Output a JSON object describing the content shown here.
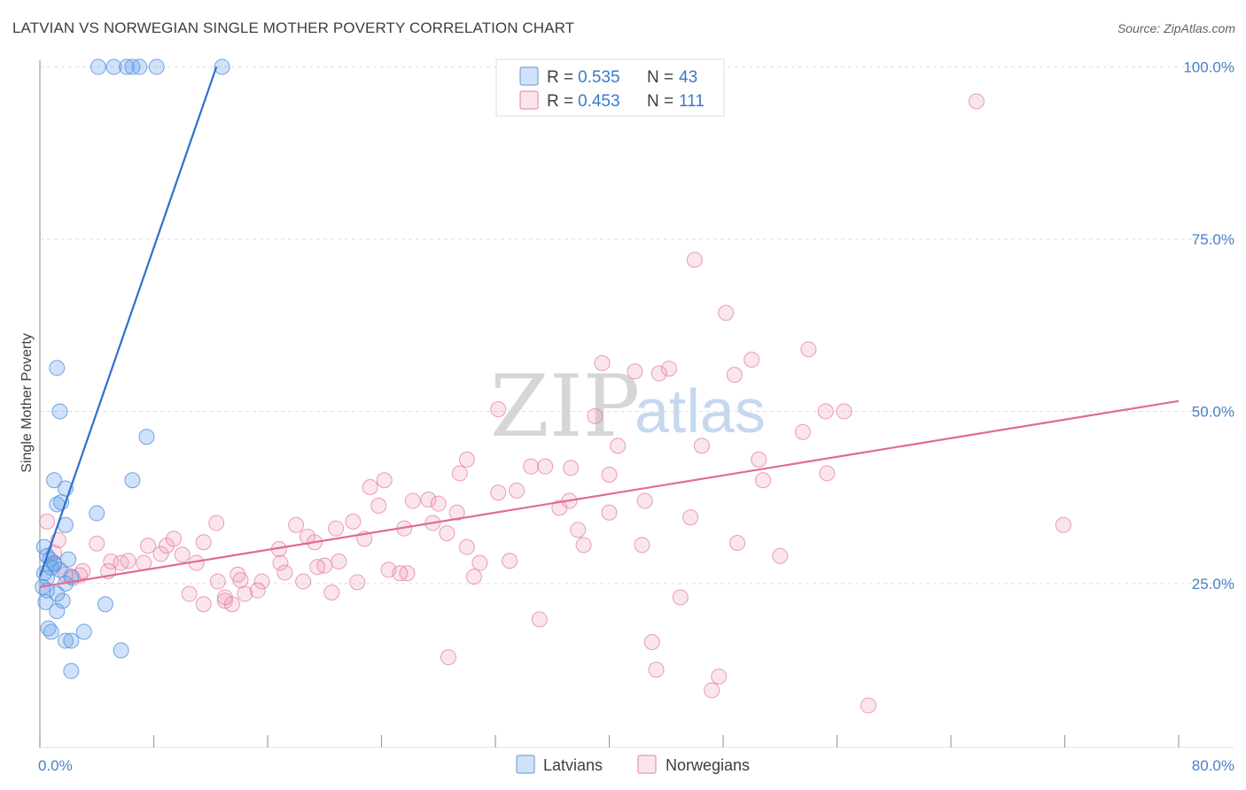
{
  "title": "LATVIAN VS NORWEGIAN SINGLE MOTHER POVERTY CORRELATION CHART",
  "source": "Source: ZipAtlas.com",
  "watermark": {
    "zip": "ZIP",
    "atlas": "atlas"
  },
  "colors": {
    "latvian_fill": "rgba(100,160,235,0.30)",
    "latvian_stroke": "#5b95dc",
    "latvian_line": "#2e6fd0",
    "norwegian_fill": "rgba(240,150,180,0.25)",
    "norwegian_stroke": "#e07fa2",
    "norwegian_line": "#e06b97",
    "grid": "#dedede",
    "axis_text": "#4a7fc9"
  },
  "legend": {
    "r_label": "R =",
    "n_label": "N =",
    "entries": [
      {
        "series": "Latvians",
        "r": "0.535",
        "n": "43"
      },
      {
        "series": "Norwegians",
        "r": "0.453",
        "n": "111"
      }
    ]
  },
  "chart_data": {
    "type": "scatter",
    "title": "LATVIAN VS NORWEGIAN SINGLE MOTHER POVERTY CORRELATION CHART",
    "xlabel": "",
    "ylabel": "Single Mother Poverty",
    "xlim": [
      0,
      80
    ],
    "ylim": [
      3,
      102
    ],
    "x_tick_labels": [
      "0.0%",
      "80.0%"
    ],
    "y_ticks": [
      25,
      50,
      75,
      100
    ],
    "y_tick_labels": [
      "25.0%",
      "50.0%",
      "75.0%",
      "100.0%"
    ],
    "grid": true,
    "legend_position": "top-center",
    "series": [
      {
        "name": "Latvians",
        "trend": {
          "x": [
            0,
            12.4
          ],
          "y": [
            26,
            100
          ]
        },
        "points": [
          [
            4.1,
            100
          ],
          [
            5.2,
            100
          ],
          [
            6.1,
            100
          ],
          [
            7.0,
            100
          ],
          [
            8.2,
            100
          ],
          [
            6.5,
            100
          ],
          [
            12.8,
            100
          ],
          [
            1.2,
            56.3
          ],
          [
            1.4,
            50.0
          ],
          [
            7.5,
            46.3
          ],
          [
            6.5,
            40.0
          ],
          [
            1.0,
            40.0
          ],
          [
            1.8,
            38.8
          ],
          [
            1.5,
            36.8
          ],
          [
            1.2,
            36.5
          ],
          [
            4.0,
            35.2
          ],
          [
            1.8,
            33.5
          ],
          [
            0.3,
            30.3
          ],
          [
            0.5,
            29.0
          ],
          [
            0.7,
            28.5
          ],
          [
            2.0,
            28.5
          ],
          [
            1.0,
            27.8
          ],
          [
            0.8,
            27.3
          ],
          [
            1.4,
            27.0
          ],
          [
            2.2,
            26.0
          ],
          [
            0.5,
            25.8
          ],
          [
            1.8,
            25.0
          ],
          [
            0.2,
            24.5
          ],
          [
            0.5,
            24.0
          ],
          [
            1.2,
            23.5
          ],
          [
            1.6,
            22.5
          ],
          [
            0.4,
            22.3
          ],
          [
            4.6,
            22.0
          ],
          [
            1.2,
            21.0
          ],
          [
            0.6,
            18.5
          ],
          [
            0.8,
            18.0
          ],
          [
            3.1,
            18.0
          ],
          [
            1.8,
            16.7
          ],
          [
            2.2,
            16.7
          ],
          [
            5.7,
            15.3
          ],
          [
            2.2,
            12.3
          ],
          [
            1.0,
            28.0
          ],
          [
            0.3,
            26.5
          ]
        ]
      },
      {
        "name": "Norwegians",
        "trend": {
          "x": [
            0,
            80
          ],
          "y": [
            24.5,
            51.5
          ]
        },
        "points": [
          [
            65.8,
            95.0
          ],
          [
            46.0,
            72.0
          ],
          [
            48.2,
            64.3
          ],
          [
            54.0,
            59.0
          ],
          [
            50.0,
            57.5
          ],
          [
            39.5,
            57.0
          ],
          [
            44.2,
            56.2
          ],
          [
            41.8,
            55.8
          ],
          [
            43.5,
            55.5
          ],
          [
            48.8,
            55.3
          ],
          [
            32.2,
            50.3
          ],
          [
            39.0,
            49.3
          ],
          [
            55.2,
            50.0
          ],
          [
            56.5,
            50.0
          ],
          [
            53.6,
            47.0
          ],
          [
            40.6,
            45.0
          ],
          [
            46.5,
            45.0
          ],
          [
            30.0,
            43.0
          ],
          [
            50.5,
            43.0
          ],
          [
            34.5,
            42.0
          ],
          [
            35.5,
            42.0
          ],
          [
            37.3,
            41.8
          ],
          [
            29.5,
            41.0
          ],
          [
            40.0,
            40.8
          ],
          [
            55.3,
            41.0
          ],
          [
            50.8,
            40.0
          ],
          [
            24.2,
            40.0
          ],
          [
            23.2,
            39.0
          ],
          [
            33.5,
            38.5
          ],
          [
            32.2,
            38.2
          ],
          [
            37.2,
            37.0
          ],
          [
            42.5,
            37.0
          ],
          [
            26.2,
            37.0
          ],
          [
            27.3,
            37.2
          ],
          [
            28.0,
            36.6
          ],
          [
            23.8,
            36.3
          ],
          [
            36.5,
            36.0
          ],
          [
            29.3,
            35.3
          ],
          [
            40.0,
            35.3
          ],
          [
            45.7,
            34.6
          ],
          [
            27.6,
            33.8
          ],
          [
            22.0,
            34.0
          ],
          [
            71.9,
            33.5
          ],
          [
            20.8,
            33.0
          ],
          [
            25.6,
            33.0
          ],
          [
            18.0,
            33.5
          ],
          [
            37.8,
            32.8
          ],
          [
            28.6,
            32.3
          ],
          [
            18.8,
            31.8
          ],
          [
            22.8,
            31.5
          ],
          [
            9.4,
            31.5
          ],
          [
            7.6,
            30.5
          ],
          [
            8.9,
            30.5
          ],
          [
            11.5,
            31.0
          ],
          [
            19.3,
            31.0
          ],
          [
            38.2,
            30.6
          ],
          [
            42.3,
            30.6
          ],
          [
            49.0,
            30.9
          ],
          [
            30.0,
            30.3
          ],
          [
            16.8,
            30.0
          ],
          [
            1.0,
            29.5
          ],
          [
            8.5,
            29.3
          ],
          [
            10.0,
            29.2
          ],
          [
            52.0,
            29.0
          ],
          [
            5.0,
            28.2
          ],
          [
            6.2,
            28.3
          ],
          [
            5.7,
            28.0
          ],
          [
            7.3,
            28.0
          ],
          [
            11.0,
            28.0
          ],
          [
            16.9,
            28.0
          ],
          [
            21.0,
            28.2
          ],
          [
            33.0,
            28.3
          ],
          [
            30.9,
            28.0
          ],
          [
            20.0,
            27.6
          ],
          [
            19.5,
            27.4
          ],
          [
            24.5,
            27.0
          ],
          [
            3.0,
            26.8
          ],
          [
            25.3,
            26.5
          ],
          [
            1.8,
            26.3
          ],
          [
            4.8,
            26.8
          ],
          [
            17.2,
            26.6
          ],
          [
            25.8,
            26.5
          ],
          [
            13.9,
            26.3
          ],
          [
            30.5,
            26.0
          ],
          [
            2.3,
            25.8
          ],
          [
            14.1,
            25.5
          ],
          [
            15.6,
            25.3
          ],
          [
            22.3,
            25.2
          ],
          [
            12.5,
            25.3
          ],
          [
            18.5,
            25.3
          ],
          [
            15.3,
            24.0
          ],
          [
            14.4,
            23.5
          ],
          [
            10.5,
            23.5
          ],
          [
            20.5,
            23.7
          ],
          [
            13.0,
            22.5
          ],
          [
            11.5,
            22.0
          ],
          [
            13.5,
            22.0
          ],
          [
            45.0,
            23.0
          ],
          [
            35.1,
            19.8
          ],
          [
            43.0,
            16.5
          ],
          [
            28.7,
            14.3
          ],
          [
            43.3,
            12.5
          ],
          [
            47.7,
            11.5
          ],
          [
            47.2,
            9.5
          ],
          [
            58.2,
            7.3
          ],
          [
            1.3,
            31.3
          ],
          [
            0.5,
            34.0
          ],
          [
            13.0,
            23.0
          ],
          [
            2.8,
            26.2
          ],
          [
            4.0,
            30.8
          ],
          [
            12.4,
            33.8
          ]
        ]
      }
    ]
  },
  "bottom_legend": [
    "Latvians",
    "Norwegians"
  ]
}
